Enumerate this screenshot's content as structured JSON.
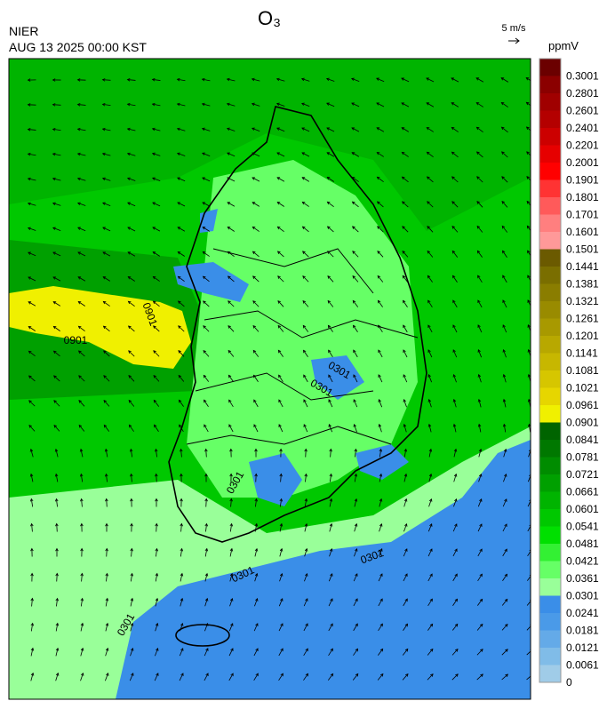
{
  "header": {
    "title": "O₃",
    "agency": "NIER",
    "datetime": "AUG 13 2025 00:00 KST",
    "wind_scale": "5 m/s"
  },
  "colorbar": {
    "unit": "ppmV",
    "levels": [
      0.3001,
      0.2801,
      0.2601,
      0.2401,
      0.2201,
      0.2001,
      0.1901,
      0.1801,
      0.1701,
      0.1601,
      0.1501,
      0.1441,
      0.1381,
      0.1321,
      0.1261,
      0.1201,
      0.1141,
      0.1081,
      0.1021,
      0.0961,
      0.0901,
      0.0841,
      0.0781,
      0.0721,
      0.0661,
      0.0601,
      0.0541,
      0.0481,
      0.0421,
      0.0361,
      0.0301,
      0.0241,
      0.0181,
      0.0121,
      0.0061,
      0
    ],
    "colors": [
      "#6b0000",
      "#8b0000",
      "#a00000",
      "#b40000",
      "#cc0000",
      "#e60000",
      "#ff0000",
      "#ff3333",
      "#ff5a5a",
      "#ff7f7f",
      "#ff9999",
      "#6b5a00",
      "#7a6e00",
      "#8a7d00",
      "#998b00",
      "#a89900",
      "#b8a800",
      "#c7b700",
      "#d6c600",
      "#e6d600",
      "#f0f000",
      "#006400",
      "#007800",
      "#008c00",
      "#00a000",
      "#00b400",
      "#00c800",
      "#00e000",
      "#33f033",
      "#66ff66",
      "#99ff99",
      "#3a8ee8",
      "#4a9ae8",
      "#64aae8",
      "#80bce8",
      "#a0cce8"
    ]
  },
  "map": {
    "contour_labels": [
      "0901",
      "0901",
      "0301",
      "0301",
      "0301",
      "0301",
      "0301",
      "0301"
    ]
  }
}
